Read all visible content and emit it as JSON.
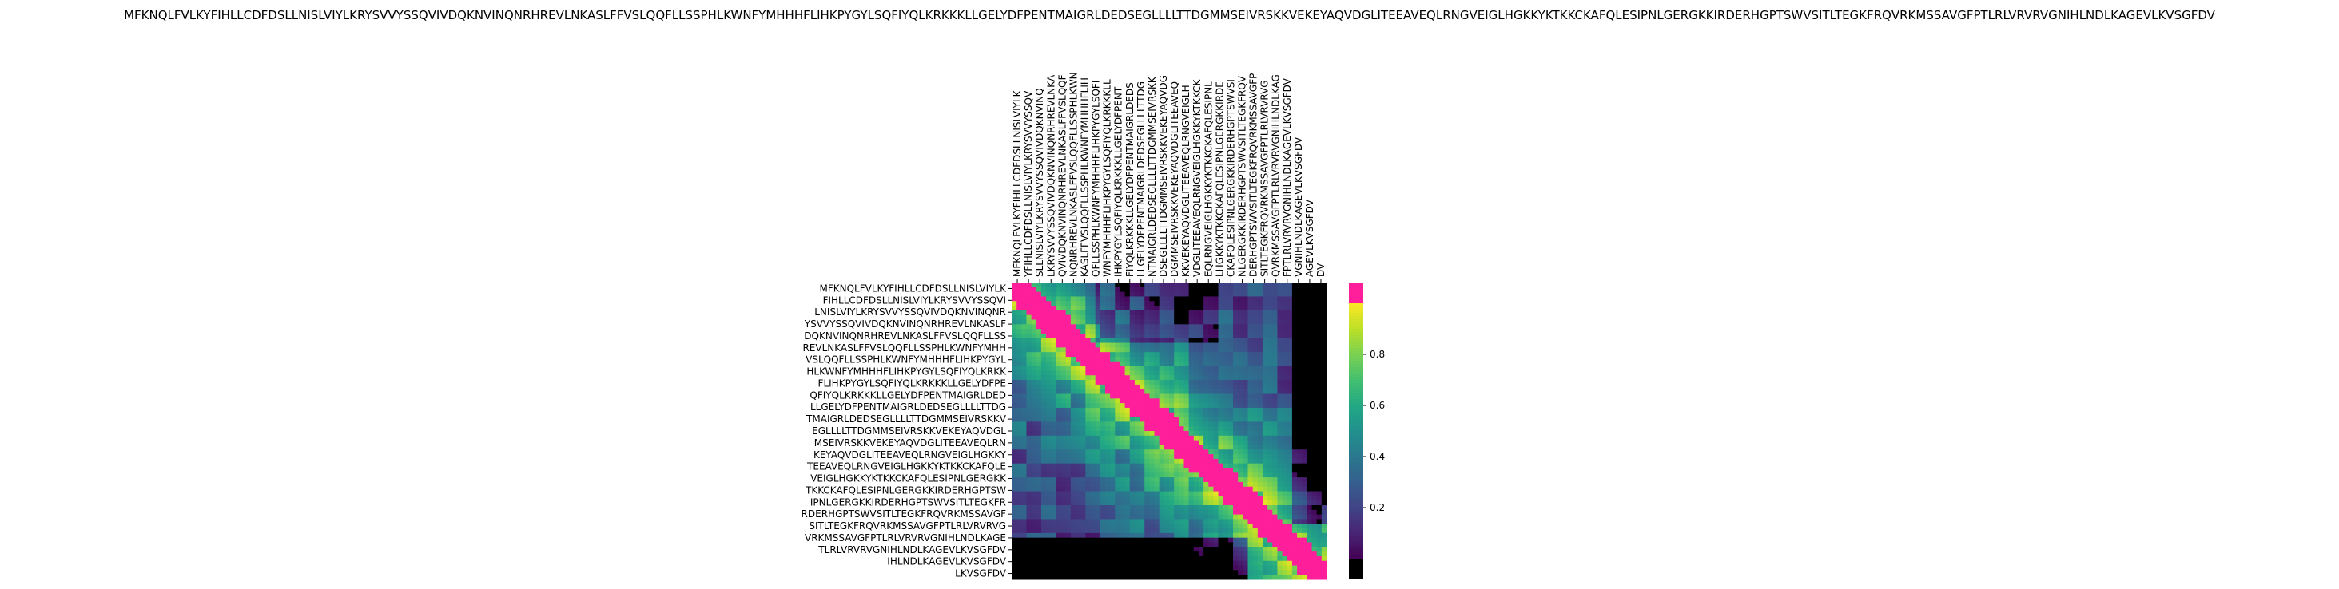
{
  "chart_data": {
    "type": "heatmap",
    "title": "MFKNQLFVLKYFIHLLCDFDSLLNISLVIYLKRYSVVYSSQVIVDQKNVINQNRHREVLNKASLFFVSLQQFLLSSPHLKWNFYMHHHFLIHKPYGYLSQFIYQLKRKKKLLGELYDFPENTMAIGRLDEDSEGLLLLTTDGMMSEIVRSKKVEKEYAQVDGLITEEAVEQLRNGVEIGLHGKKYKTKKCKAFQLESIPNLGERGKKIRDERHGPTSWVSITLTEGKFRQVRKMSSAVGFPTLRLVRVRVGNIHLNDLKAGEVLKVSGFDV",
    "xlabel": "",
    "ylabel": "",
    "row_labels": [
      "MFKNQLFVLKYFIHLLCDFDSLLNISLVIYLK",
      "FIHLLCDFDSLLNISLVIYLKRYSVVYSSQVI",
      "LNISLVIYLKRYSVVYSSQVIVDQKNVINQNR",
      "YSVVYSSQVIVDQKNVINQNRHREVLNKASLF",
      "DQKNVINQNRHREVLNKASLFFVSLQQFLLSS",
      "REVLNKASLFFVSLQQFLLSSPHLKWNFYMHH",
      "VSLQQFLLSSPHLKWNFYMHHHFLIHKPYGYL",
      "HLKWNFYMHHHFLIHKPYGYLSQFIYQLKRKK",
      "FLIHKPYGYLSQFIYQLKRKKKLLGELYDFPE",
      "QFIYQLKRKKKLLGELYDFPENTMAIGRLDED",
      "LLGELYDFPENTMAIGRLDEDSEGLLLLTTDG",
      "TMAIGRLDEDSEGLLLLTTDGMMSEIVRSKKV",
      "EGLLLLTTDGMMSEIVRSKKVEKEYAQVDGL",
      "MSEIVRSKKVEKEYAQVDGLITEEAVEQLRN",
      "KEYAQVDGLITEEAVEQLRNGVEIGLHGKKY",
      "TEEAVEQLRNGVEIGLHGKKYKTKKCKAFQLE",
      "VEIGLHGKKYKTKKCKAFQLESIPNLGERGKK",
      "TKKCKAFQLESIPNLGERGKKIRDERHGPTSW",
      "IPNLGERGKKIRDERHGPTSWVSITLTEGKFR",
      "RDERHGPTSWVSITLTEGKFRQVRKMSSAVGF",
      "SITLTEGKFRQVRKMSSAVGFPTLRLVRVRVG",
      "VRKMSSAVGFPTLRLVRVRVGNIHLNDLKAGE",
      "TLRLVRVRVGNIHLNDLKAGEVLKVSGFDV",
      "IHLNDLKAGEVLKVSGFDV",
      "LKVSGFDV"
    ],
    "col_labels": [
      "MFKNQLFVLKYFIHLLCDFDSLLNISLVIYLK",
      "YFIHLLCDFDSLLNISLVIYLKRYSVVYSSQV",
      "SLLNISLVIYLKRYSVVYSSQVIVDQKNVINQ",
      "LKRYSVVYSSQVIVDQKNVINQNRHREVLNKA",
      "QVIVDQKNVINQNRHREVLNKASLFFVSLQQF",
      "NQNRHREVLNKASLFFVSLQQFLLSSPHLKWN",
      "KASLFFVSLQQFLLSSPHLKWNFYMHHHFLIH",
      "QFLLSSPHLKWNFYMHHHFLIHKPYGYLSQFI",
      "WNFYMHHHFLIHKPYGYLSQFIYQLKRKKKLL",
      "IHKPYGYLSQFIYQLKRKKKLLGELYDFPENT",
      "FIYQLKRKKKLLGELYDFPENTMAIGRLDEDS",
      "LLGELYDFPENTMAIGRLDEDSEGLLLLTTDG",
      "NTMAIGRLDEDSEGLLLLTTDGMMSEIVRSKK",
      "DSEGLLLLTTDGMMSEIVRSKKVEKEYAQVDG",
      "DGMMSEIVRSKKVEKEYAQVDGLITEEAVEQ",
      "KKVEKEYAQVDGLITEEAVEQLRNGVEIGLH",
      "VDGLITEEAVEQLRNGVEIGLHGKKYKTKKCK",
      "EQLRNGVEIGLHGKKYKTKKCKAFQLESIPNL",
      "LHGKKYKTKKCKAFQLESIPNLGERGKKIRDE",
      "CKAFQLESIPNLGERGKKIRDERHGPTSWVSI",
      "NLGERGKKIRDERHGPTSWVSITLTEGKFRQV",
      "DERHGPTSWVSITLTEGKFRQVRKMSSAVGFP",
      "SITLTEGKFRQVRKMSSAVGFPTLRLVRVRVG",
      "QVRKMSSAVGFPTLRLVRVRVGNIHLNDLKAG",
      "FPTLRLVRVRVGNIHLNDLKAGEVLKVSGFDV",
      "VGNIHLNDLKAGEVLKVSGFDV",
      "AGEVLKVSGFDV",
      "DV"
    ],
    "value_range": [
      0,
      1
    ],
    "colorbar_ticks": [
      "0.2",
      "0.4",
      "0.6",
      "0.8"
    ],
    "colorbar_tick_values": [
      0.2,
      0.4,
      0.6,
      0.8
    ],
    "colormap": "viridis",
    "under_color": "#000000",
    "over_color": "#ff1f9a",
    "legend_position": "right",
    "grid": false
  }
}
